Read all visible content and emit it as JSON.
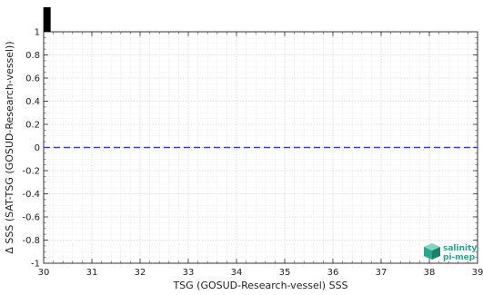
{
  "chart_data": {
    "type": "line",
    "title": "",
    "xlabel": "TSG (GOSUD-Research-vessel) SSS",
    "ylabel": "Δ SSS (SAT-TSG (GOSUD-Research-vessel))",
    "xlim": [
      30,
      39
    ],
    "ylim": [
      -1,
      1
    ],
    "x_ticks": [
      "30",
      "31",
      "32",
      "33",
      "34",
      "35",
      "36",
      "37",
      "38",
      "39"
    ],
    "y_ticks": [
      "1",
      "0.8",
      "0.6",
      "0.4",
      "0.2",
      "0",
      "-0.2",
      "-0.4",
      "-0.6",
      "-0.8",
      "-1"
    ],
    "grid": true,
    "reference_line": {
      "y": 0,
      "style": "dashed",
      "color": "#3a3adf"
    },
    "marker_bar": {
      "x": 30.05,
      "color": "#000000"
    }
  },
  "logo": {
    "line1": "salinity",
    "line2": "pi-mep",
    "color": "#2ca58d"
  }
}
